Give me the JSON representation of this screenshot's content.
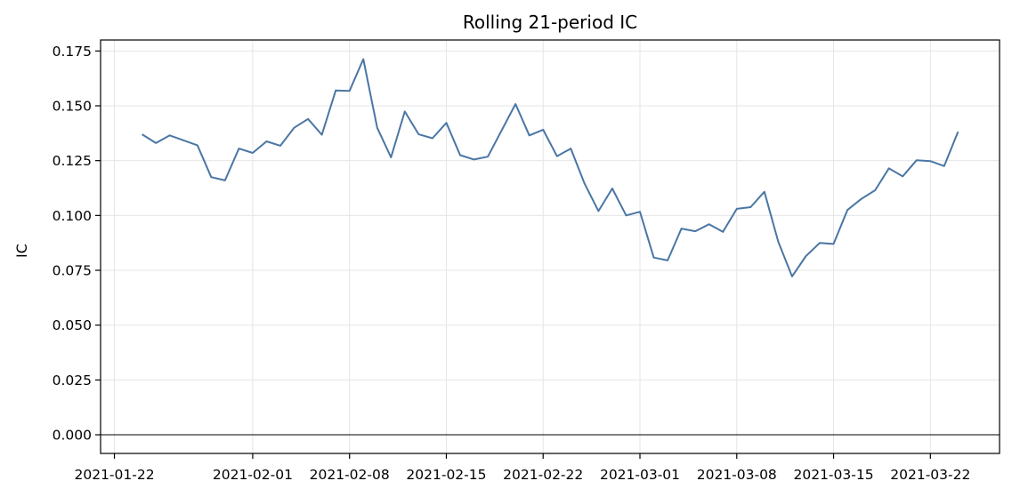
{
  "chart_data": {
    "type": "line",
    "title": "Rolling 21-period IC",
    "xlabel": "",
    "ylabel": "IC",
    "xlim": [
      "2021-01-21",
      "2021-03-27"
    ],
    "ylim": [
      -0.0085,
      0.18
    ],
    "x_ticks": [
      "2021-01-22",
      "2021-02-01",
      "2021-02-08",
      "2021-02-15",
      "2021-02-22",
      "2021-03-01",
      "2021-03-08",
      "2021-03-15",
      "2021-03-22"
    ],
    "y_ticks": [
      0.0,
      0.025,
      0.05,
      0.075,
      0.1,
      0.125,
      0.15,
      0.175
    ],
    "y_tick_labels": [
      "0.000",
      "0.025",
      "0.050",
      "0.075",
      "0.100",
      "0.125",
      "0.150",
      "0.175"
    ],
    "grid": true,
    "zero_line": true,
    "colors": {
      "line": "#4a76a4",
      "grid": "#e6e6e6",
      "axis": "#000000",
      "zero_line": "#000000"
    },
    "series": [
      {
        "x": [
          "2021-01-24",
          "2021-01-25",
          "2021-01-26",
          "2021-01-28",
          "2021-01-29",
          "2021-01-30",
          "2021-01-31",
          "2021-02-01",
          "2021-02-02",
          "2021-02-03",
          "2021-02-04",
          "2021-02-05",
          "2021-02-06",
          "2021-02-07",
          "2021-02-08",
          "2021-02-09",
          "2021-02-10",
          "2021-02-11",
          "2021-02-12",
          "2021-02-13",
          "2021-02-14",
          "2021-02-15",
          "2021-02-16",
          "2021-02-17",
          "2021-02-18",
          "2021-02-20",
          "2021-02-21",
          "2021-02-22",
          "2021-02-23",
          "2021-02-24",
          "2021-02-25",
          "2021-02-26",
          "2021-02-27",
          "2021-02-28",
          "2021-03-01",
          "2021-03-02",
          "2021-03-03",
          "2021-03-04",
          "2021-03-05",
          "2021-03-06",
          "2021-03-07",
          "2021-03-08",
          "2021-03-09",
          "2021-03-10",
          "2021-03-11",
          "2021-03-12",
          "2021-03-13",
          "2021-03-14",
          "2021-03-15",
          "2021-03-16",
          "2021-03-17",
          "2021-03-18",
          "2021-03-19",
          "2021-03-20",
          "2021-03-21",
          "2021-03-22",
          "2021-03-23",
          "2021-03-24"
        ],
        "values": [
          0.137,
          0.133,
          0.1365,
          0.132,
          0.1175,
          0.116,
          0.1305,
          0.1285,
          0.1338,
          0.1318,
          0.14,
          0.144,
          0.1368,
          0.157,
          0.1568,
          0.1713,
          0.14,
          0.1265,
          0.1474,
          0.137,
          0.1352,
          0.1422,
          0.1275,
          0.1255,
          0.1268,
          0.1508,
          0.1365,
          0.1391,
          0.127,
          0.1305,
          0.1145,
          0.102,
          0.1123,
          0.1,
          0.1017,
          0.0808,
          0.0795,
          0.094,
          0.0928,
          0.096,
          0.0925,
          0.103,
          0.1038,
          0.1108,
          0.088,
          0.0722,
          0.0815,
          0.0875,
          0.087,
          0.1025,
          0.1075,
          0.1115,
          0.1215,
          0.1178,
          0.1252,
          0.1248,
          0.1225,
          0.1382
        ]
      }
    ]
  }
}
